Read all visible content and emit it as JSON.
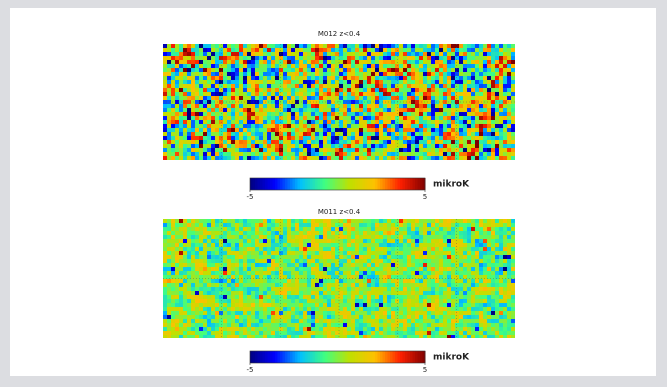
{
  "panels": [
    {
      "title": "M012 z<0.4",
      "clim": [
        -5,
        5
      ],
      "cticks": [
        -5,
        5
      ],
      "unit": "mikroK"
    },
    {
      "title": "M011 z<0.4",
      "clim": [
        -5,
        5
      ],
      "cticks": [
        -5,
        5
      ],
      "unit": "mikroK"
    }
  ],
  "colormap": [
    "#00007f",
    "#0000ff",
    "#00bfff",
    "#40ff80",
    "#c0e000",
    "#ffc000",
    "#ff2000",
    "#800000"
  ]
}
